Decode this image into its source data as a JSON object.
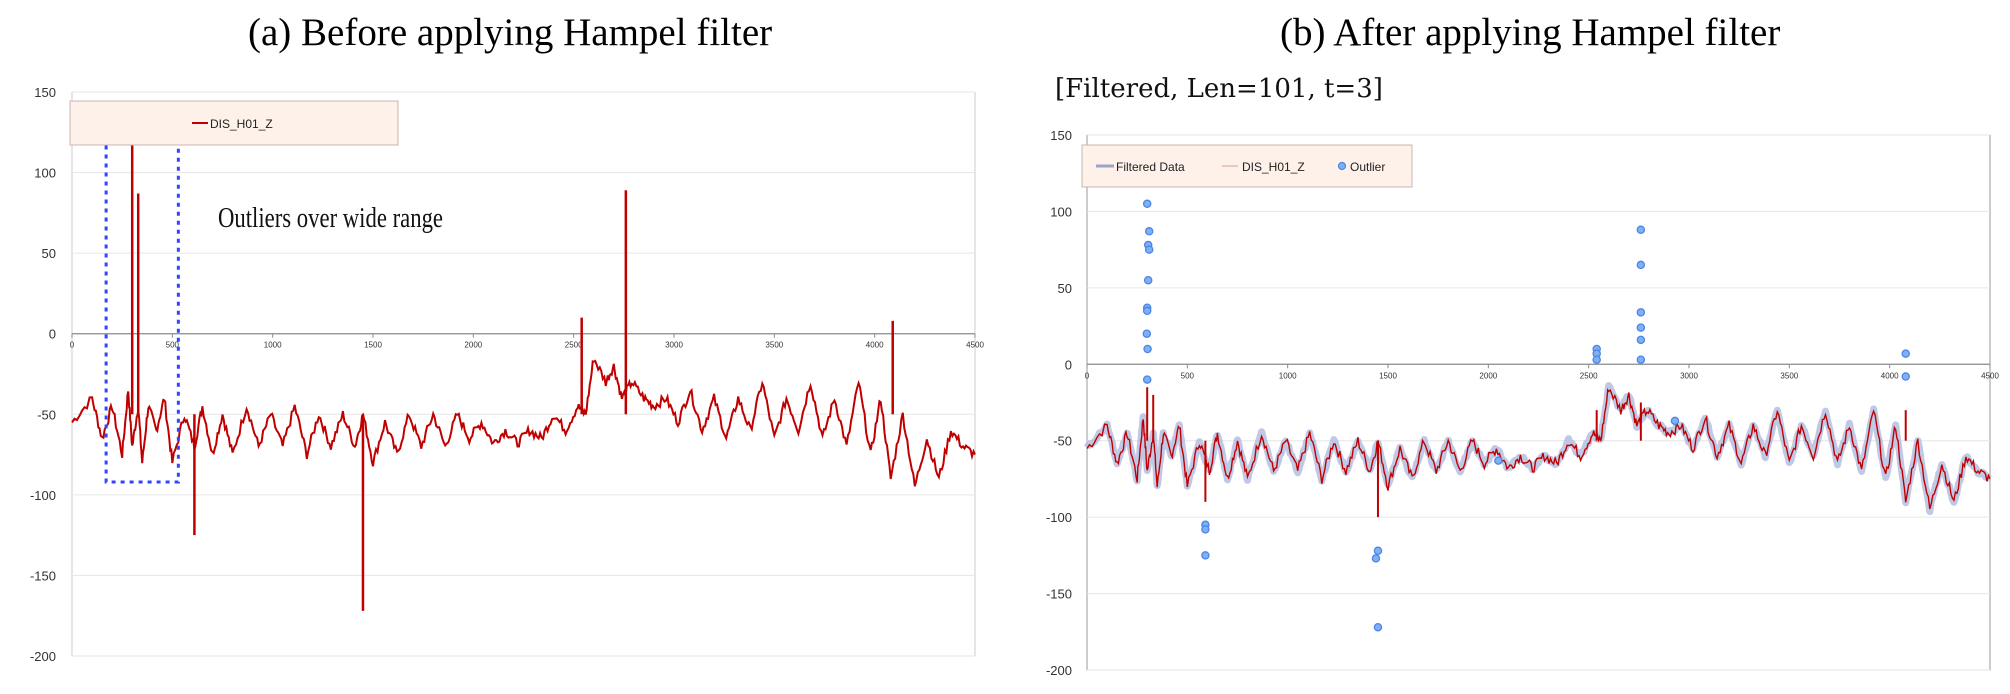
{
  "chart_data": [
    {
      "type": "line",
      "title": "(a) Before applying Hampel filter",
      "xlabel": "",
      "ylabel": "",
      "xlim": [
        0,
        4500
      ],
      "ylim": [
        -200,
        150
      ],
      "y_ticks": [
        -200,
        -150,
        -100,
        -50,
        0,
        50,
        100,
        150
      ],
      "x_ticks": [
        0,
        500,
        1000,
        1500,
        2000,
        2500,
        3000,
        3500,
        4000,
        4500
      ],
      "grid": true,
      "legend": "top-left",
      "series": [
        {
          "name": "DIS_H01_Z",
          "color": "#c00000",
          "x": [
            0,
            100,
            150,
            200,
            250,
            280,
            300,
            330,
            350,
            380,
            420,
            460,
            500,
            560,
            610,
            650,
            700,
            750,
            800,
            870,
            930,
            990,
            1050,
            1110,
            1170,
            1230,
            1290,
            1350,
            1410,
            1450,
            1500,
            1560,
            1620,
            1680,
            1740,
            1800,
            1860,
            1920,
            1980,
            2040,
            2100,
            2160,
            2220,
            2280,
            2340,
            2400,
            2460,
            2520,
            2560,
            2600,
            2660,
            2700,
            2740,
            2790,
            2850,
            2900,
            2960,
            3020,
            3080,
            3140,
            3200,
            3260,
            3320,
            3380,
            3440,
            3500,
            3560,
            3620,
            3680,
            3740,
            3800,
            3860,
            3920,
            3980,
            4030,
            4080,
            4140,
            4200,
            4260,
            4320,
            4380,
            4440,
            4500
          ],
          "y": [
            -55,
            -40,
            -65,
            -45,
            -75,
            -35,
            -70,
            -45,
            -80,
            -45,
            -60,
            -40,
            -80,
            -50,
            -70,
            -45,
            -75,
            -50,
            -75,
            -45,
            -70,
            -50,
            -70,
            -45,
            -75,
            -50,
            -70,
            -50,
            -70,
            -50,
            -80,
            -55,
            -75,
            -50,
            -70,
            -50,
            -70,
            -50,
            -65,
            -55,
            -68,
            -60,
            -68,
            -60,
            -65,
            -50,
            -60,
            -45,
            -50,
            -15,
            -30,
            -20,
            -40,
            -30,
            -40,
            -45,
            -40,
            -55,
            -35,
            -60,
            -40,
            -65,
            -40,
            -60,
            -30,
            -65,
            -40,
            -60,
            -30,
            -65,
            -40,
            -70,
            -30,
            -75,
            -40,
            -90,
            -50,
            -95,
            -65,
            -90,
            -60,
            -70,
            -75
          ],
          "spikes": [
            {
              "x": 300,
              "y": 130
            },
            {
              "x": 330,
              "y": 87
            },
            {
              "x": 610,
              "y": -125
            },
            {
              "x": 1450,
              "y": -172
            },
            {
              "x": 2540,
              "y": 10
            },
            {
              "x": 2760,
              "y": 89
            },
            {
              "x": 4090,
              "y": 8
            }
          ]
        }
      ],
      "annotation": "Outliers over wide range"
    },
    {
      "type": "line",
      "title": "(b) After applying Hampel filter",
      "subtitle": "[Filtered, Len=101, t=3]",
      "xlabel": "",
      "ylabel": "",
      "xlim": [
        0,
        4500
      ],
      "ylim": [
        -200,
        150
      ],
      "y_ticks": [
        -200,
        -150,
        -100,
        -50,
        0,
        50,
        100,
        150
      ],
      "x_ticks": [
        0,
        500,
        1000,
        1500,
        2000,
        2500,
        3000,
        3500,
        4000,
        4500
      ],
      "grid": true,
      "legend": "top-left",
      "series": [
        {
          "name": "Filtered Data",
          "color": "#9aa3c8"
        },
        {
          "name": "DIS_H01_Z",
          "color": "#c00000"
        },
        {
          "name": "Outlier",
          "color": "#4a86e8",
          "marker": "circle",
          "points": [
            [
              300,
              105
            ],
            [
              310,
              87
            ],
            [
              305,
              78
            ],
            [
              310,
              75
            ],
            [
              305,
              55
            ],
            [
              300,
              37
            ],
            [
              300,
              35
            ],
            [
              298,
              20
            ],
            [
              302,
              10
            ],
            [
              300,
              -10
            ],
            [
              590,
              -105
            ],
            [
              590,
              -108
            ],
            [
              590,
              -125
            ],
            [
              1450,
              -122
            ],
            [
              1440,
              -127
            ],
            [
              1450,
              -172
            ],
            [
              2050,
              -63
            ],
            [
              2540,
              10
            ],
            [
              2540,
              7
            ],
            [
              2540,
              3
            ],
            [
              2760,
              88
            ],
            [
              2760,
              65
            ],
            [
              2760,
              34
            ],
            [
              2760,
              24
            ],
            [
              2760,
              16
            ],
            [
              2760,
              3
            ],
            [
              2930,
              -37
            ],
            [
              4080,
              7
            ],
            [
              4080,
              -8
            ]
          ]
        }
      ]
    }
  ],
  "header": {
    "title_a": "(a) Before applying Hampel filter",
    "title_b": "(b) After applying Hampel filter",
    "subtitle_b": "[Filtered, Len=101, t=3]"
  }
}
